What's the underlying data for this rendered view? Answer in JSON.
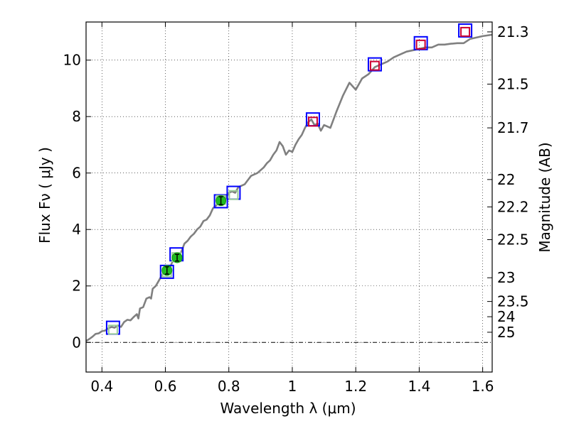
{
  "chart_data": {
    "type": "line",
    "xlabel": "Wavelength  λ (μm)",
    "ylabel": "Flux  Fν  ( μJy )",
    "ylabel_right": "Magnitude (AB)",
    "xlim": [
      0.35,
      1.63
    ],
    "ylim": [
      -1.05,
      11.35
    ],
    "grid": true,
    "x_ticks": [
      0.4,
      0.6,
      0.8,
      1.0,
      1.2,
      1.4,
      1.6
    ],
    "x_tick_labels": [
      "0.4",
      "0.6",
      "0.8",
      "1",
      "1.2",
      "1.4",
      "1.6"
    ],
    "y_ticks": [
      0,
      2,
      4,
      6,
      8,
      10
    ],
    "y_tick_labels": [
      "0",
      "2",
      "4",
      "6",
      "8",
      "10"
    ],
    "right_ticks": [
      {
        "label": "21.3",
        "flux": 11.0
      },
      {
        "label": "21.5",
        "flux": 9.15
      },
      {
        "label": "21.7",
        "flux": 7.6
      },
      {
        "label": "22",
        "flux": 5.77
      },
      {
        "label": "22.2",
        "flux": 4.8
      },
      {
        "label": "22.5",
        "flux": 3.64
      },
      {
        "label": "23",
        "flux": 2.29
      },
      {
        "label": "23.5",
        "flux": 1.45
      },
      {
        "label": "24",
        "flux": 0.91
      },
      {
        "label": "25",
        "flux": 0.36
      }
    ],
    "series": [
      {
        "style": "sed-line",
        "color": "#808080",
        "x": [
          0.35,
          0.36,
          0.37,
          0.38,
          0.39,
          0.4,
          0.41,
          0.42,
          0.43,
          0.44,
          0.45,
          0.46,
          0.47,
          0.48,
          0.49,
          0.5,
          0.51,
          0.515,
          0.52,
          0.53,
          0.54,
          0.55,
          0.555,
          0.56,
          0.57,
          0.58,
          0.59,
          0.6,
          0.61,
          0.62,
          0.63,
          0.64,
          0.65,
          0.66,
          0.67,
          0.68,
          0.69,
          0.7,
          0.71,
          0.72,
          0.73,
          0.74,
          0.75,
          0.76,
          0.77,
          0.78,
          0.79,
          0.8,
          0.81,
          0.82,
          0.83,
          0.84,
          0.85,
          0.86,
          0.87,
          0.88,
          0.89,
          0.9,
          0.91,
          0.92,
          0.93,
          0.94,
          0.95,
          0.96,
          0.97,
          0.98,
          0.99,
          1.0,
          1.01,
          1.02,
          1.03,
          1.04,
          1.05,
          1.06,
          1.07,
          1.08,
          1.09,
          1.1,
          1.12,
          1.14,
          1.16,
          1.18,
          1.2,
          1.22,
          1.24,
          1.26,
          1.28,
          1.3,
          1.32,
          1.34,
          1.36,
          1.38,
          1.4,
          1.42,
          1.44,
          1.46,
          1.48,
          1.5,
          1.52,
          1.54,
          1.56,
          1.58,
          1.6,
          1.63
        ],
        "y": [
          0.05,
          0.12,
          0.2,
          0.3,
          0.32,
          0.4,
          0.42,
          0.5,
          0.55,
          0.52,
          0.6,
          0.55,
          0.72,
          0.8,
          0.78,
          0.9,
          1.0,
          0.85,
          1.2,
          1.25,
          1.55,
          1.6,
          1.55,
          1.9,
          2.0,
          2.2,
          2.4,
          2.55,
          2.5,
          2.8,
          3.0,
          3.0,
          3.2,
          3.5,
          3.6,
          3.75,
          3.85,
          4.0,
          4.1,
          4.3,
          4.35,
          4.5,
          4.75,
          4.85,
          5.0,
          5.05,
          5.1,
          5.3,
          5.35,
          5.3,
          5.5,
          5.55,
          5.6,
          5.75,
          5.9,
          5.95,
          6.0,
          6.1,
          6.2,
          6.35,
          6.45,
          6.65,
          6.8,
          7.1,
          6.95,
          6.65,
          6.8,
          6.75,
          7.0,
          7.2,
          7.35,
          7.6,
          7.8,
          7.9,
          7.7,
          7.75,
          7.5,
          7.7,
          7.6,
          8.2,
          8.75,
          9.2,
          8.95,
          9.35,
          9.5,
          9.75,
          9.85,
          9.95,
          10.1,
          10.2,
          10.3,
          10.35,
          10.4,
          10.45,
          10.45,
          10.55,
          10.55,
          10.58,
          10.6,
          10.6,
          10.75,
          10.8,
          10.85,
          10.9
        ]
      },
      {
        "style": "blue-open-square",
        "color": "#0000ff",
        "x": [
          0.435,
          0.605,
          0.635,
          0.775,
          0.815,
          1.065,
          1.26,
          1.405,
          1.545
        ],
        "y": [
          0.52,
          2.5,
          3.12,
          5.0,
          5.3,
          7.9,
          9.85,
          10.6,
          11.05
        ]
      },
      {
        "style": "green-open-square",
        "color": "#99cc99",
        "x": [
          0.435,
          0.605,
          0.635,
          0.775,
          0.815
        ],
        "y": [
          0.45,
          2.48,
          3.02,
          5.05,
          5.22
        ]
      },
      {
        "style": "red-open-square",
        "color": "#cc0033",
        "x": [
          1.065,
          1.26,
          1.405,
          1.545
        ],
        "y": [
          7.82,
          9.8,
          10.55,
          11.0
        ]
      },
      {
        "style": "green-dot-errorbar",
        "color": "#22bb22",
        "x": [
          0.605,
          0.637,
          0.775
        ],
        "y": [
          2.55,
          3.0,
          5.02
        ],
        "err": [
          0.13,
          0.12,
          0.14
        ]
      }
    ]
  }
}
